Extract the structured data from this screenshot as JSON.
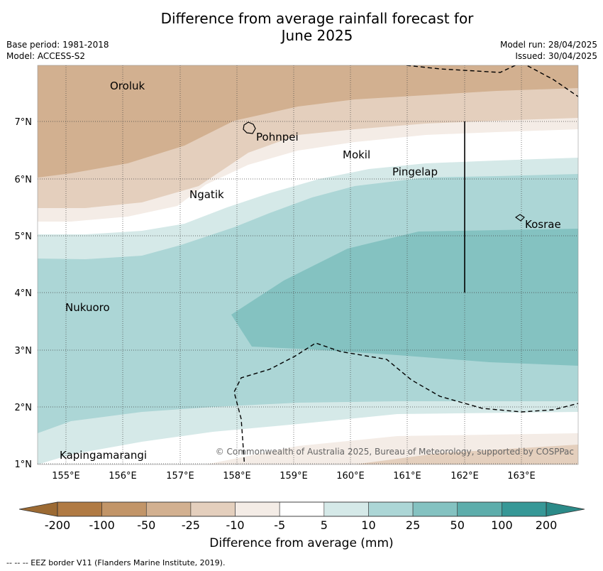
{
  "title_line1": "Difference from average rainfall forecast for",
  "title_line2": "June 2025",
  "meta": {
    "base_period": "Base period: 1981-2018",
    "model": "Model: ACCESS-S2",
    "model_run": "Model run: 28/04/2025",
    "issued": "Issued: 30/04/2025"
  },
  "map": {
    "lat_ticks": [
      "7°N",
      "6°N",
      "5°N",
      "4°N",
      "3°N",
      "2°N",
      "1°N"
    ],
    "lon_ticks": [
      "155°E",
      "156°E",
      "157°E",
      "158°E",
      "159°E",
      "160°E",
      "161°E",
      "162°E",
      "163°E"
    ],
    "places": [
      "Oroluk",
      "Pohnpei",
      "Mokil",
      "Pingelap",
      "Ngatik",
      "Kosrae",
      "Nukuoro",
      "Kapingamarangi"
    ],
    "copyright": "© Commonwealth of Australia 2025, Bureau of Meteorology, supported by COSPPac"
  },
  "colorbar": {
    "labels": [
      "-200",
      "-100",
      "-50",
      "-25",
      "-10",
      "-5",
      "5",
      "10",
      "25",
      "50",
      "100",
      "200"
    ],
    "colors": [
      "#b07a43",
      "#c29568",
      "#d2b090",
      "#e4cfbd",
      "#f4ece6",
      "#ffffff",
      "#d5e9e8",
      "#acd6d6",
      "#84c2c1",
      "#5dadab",
      "#379897"
    ],
    "title": "Difference from average (mm)"
  },
  "footer": "-- -- -- EEZ border V11 (Flanders Marine Institute, 2019)."
}
